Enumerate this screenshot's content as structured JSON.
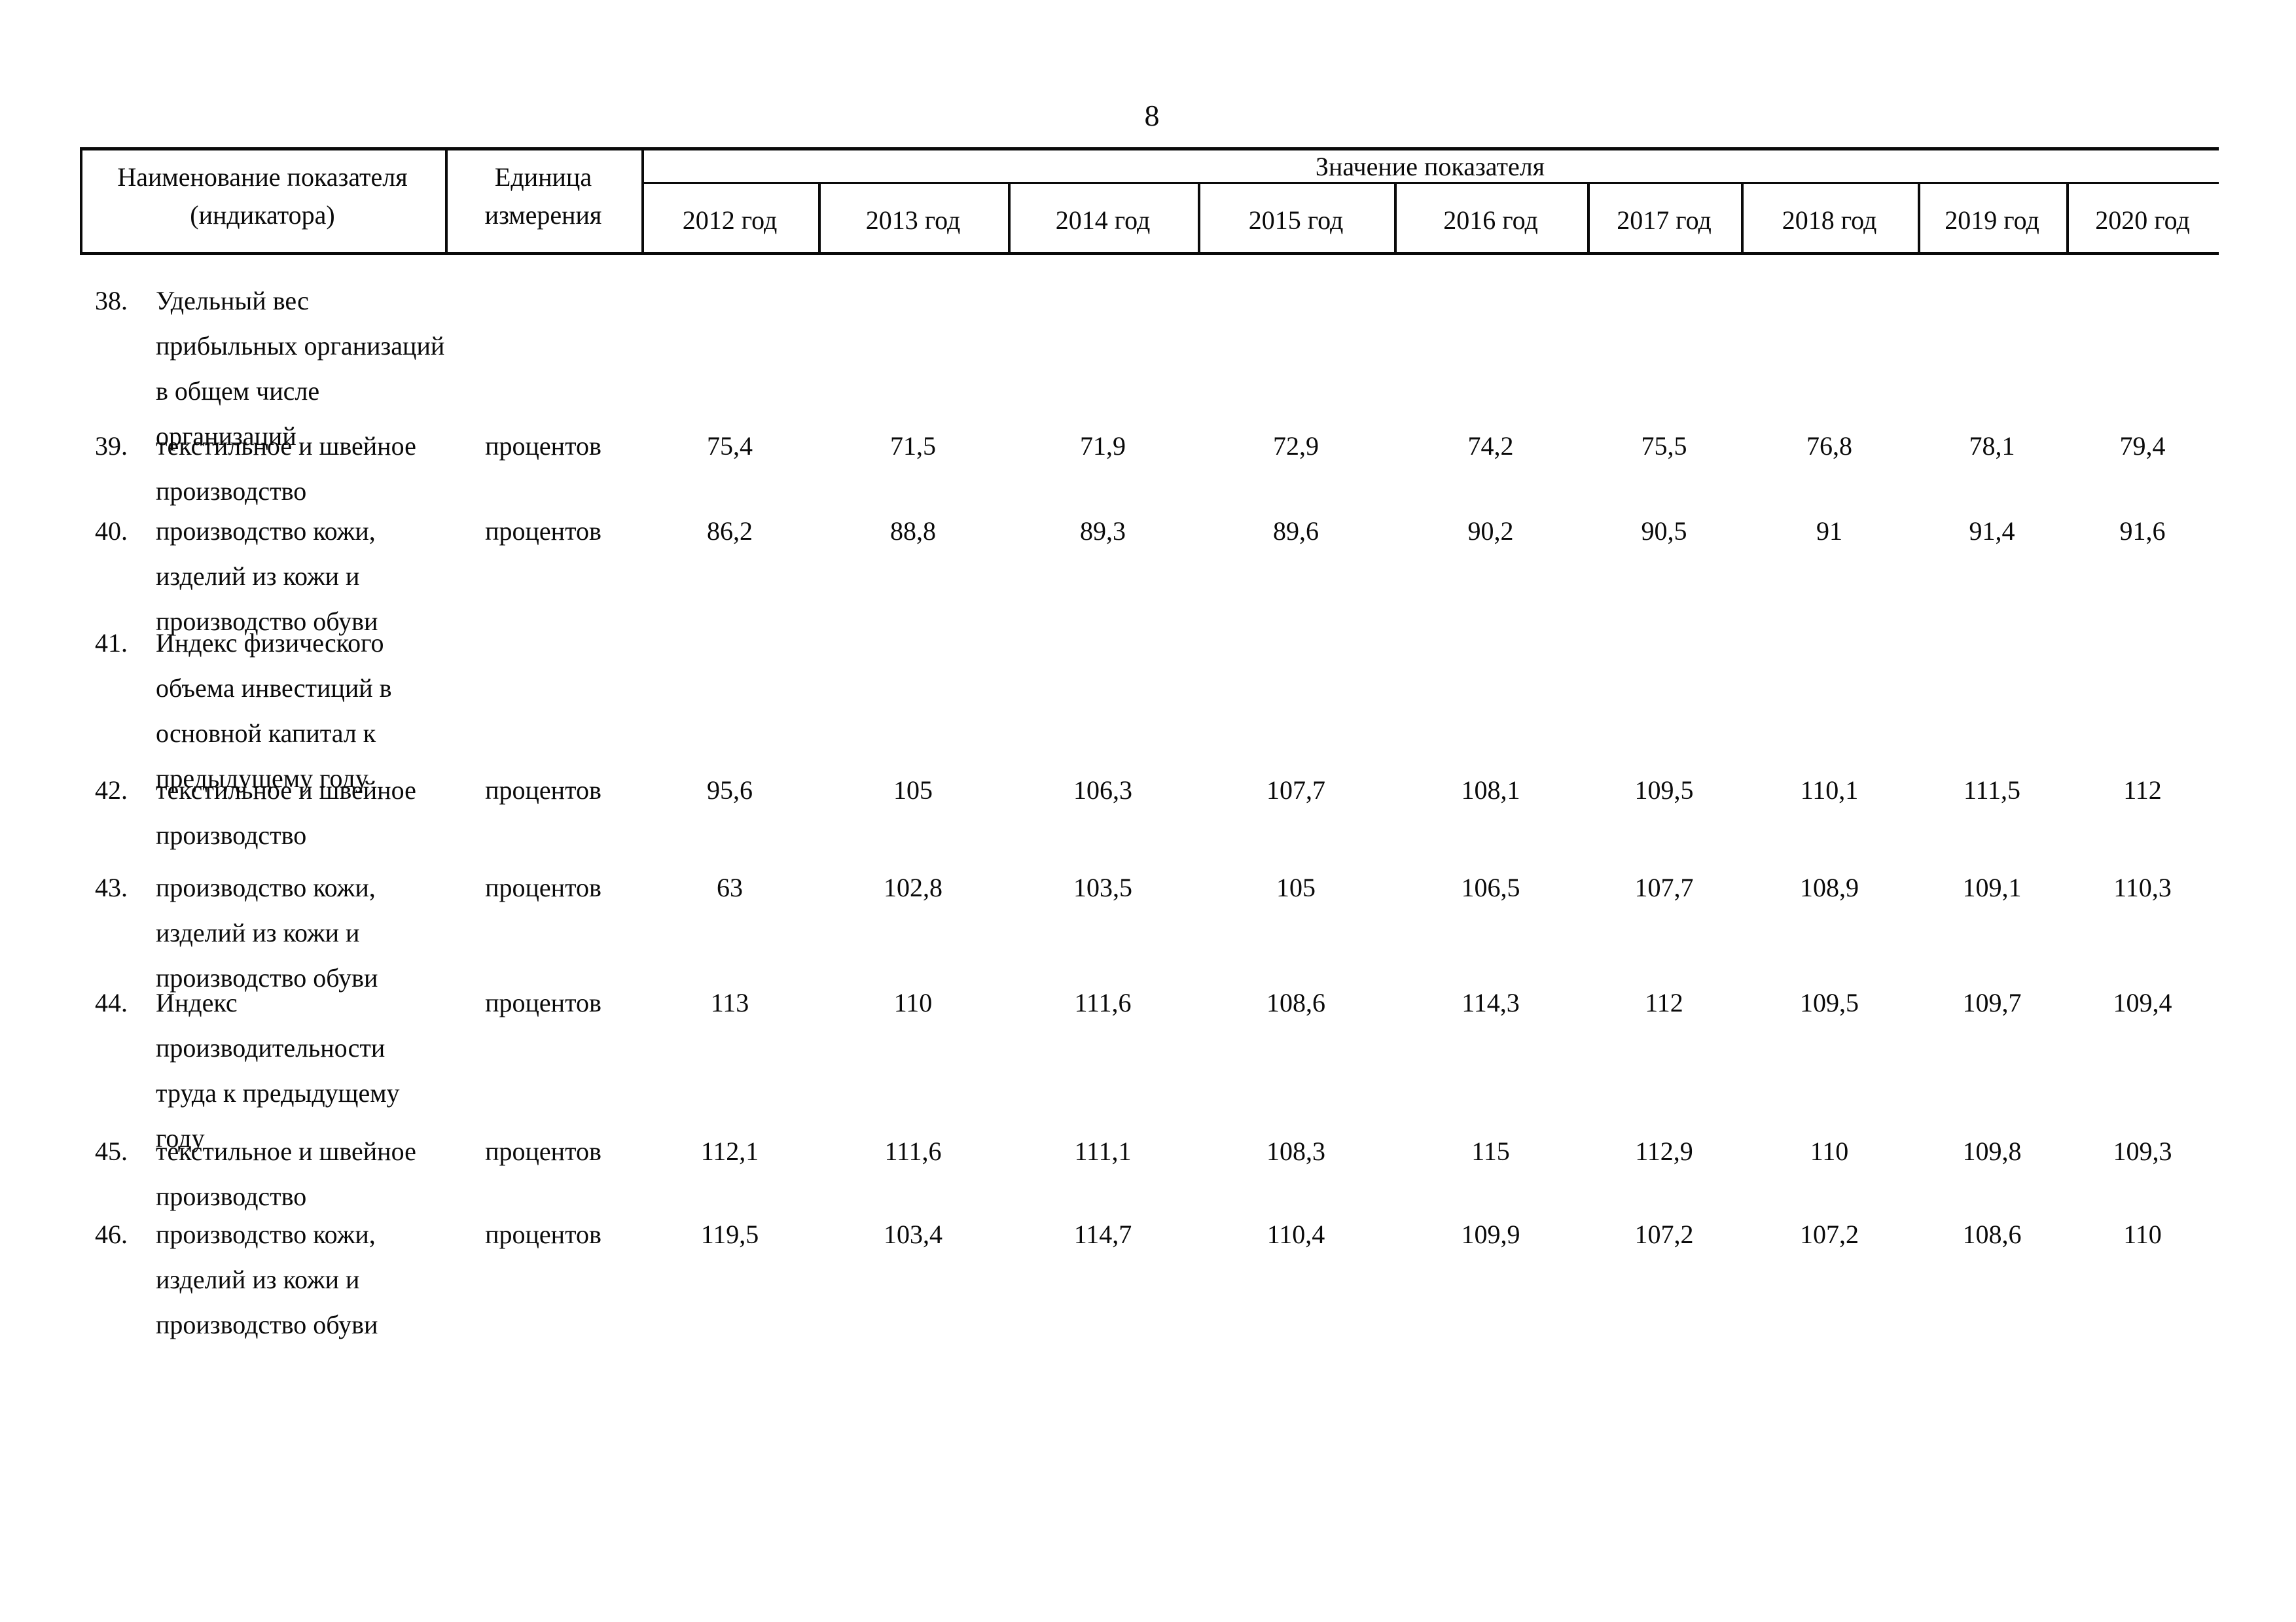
{
  "page": {
    "number": "8"
  },
  "table": {
    "header": {
      "indicator_col_lines": [
        "Наименование показателя",
        "(индикатора)"
      ],
      "unit_col_lines": [
        "Единица",
        "измерения"
      ],
      "value_group_label": "Значение показателя",
      "years": [
        "2012 год",
        "2013 год",
        "2014 год",
        "2015 год",
        "2016 год",
        "2017 год",
        "2018 год",
        "2019 год",
        "2020 год"
      ]
    },
    "rows": [
      {
        "num": "38.",
        "name_lines": [
          "Удельный вес",
          "прибыльных организаций",
          "в общем числе",
          "организаций"
        ],
        "unit": "",
        "values": []
      },
      {
        "num": "39.",
        "name_lines": [
          "текстильное и швейное",
          "производство"
        ],
        "unit": "процентов",
        "values": [
          "75,4",
          "71,5",
          "71,9",
          "72,9",
          "74,2",
          "75,5",
          "76,8",
          "78,1",
          "79,4"
        ]
      },
      {
        "num": "40.",
        "name_lines": [
          "производство кожи,",
          "изделий из кожи и",
          "производство обуви"
        ],
        "unit": "процентов",
        "values": [
          "86,2",
          "88,8",
          "89,3",
          "89,6",
          "90,2",
          "90,5",
          "91",
          "91,4",
          "91,6"
        ]
      },
      {
        "num": "41.",
        "name_lines": [
          "Индекс физического",
          "объема инвестиций в",
          "основной капитал к",
          "предыдущему году"
        ],
        "unit": "",
        "values": []
      },
      {
        "num": "42.",
        "name_lines": [
          "текстильное и швейное",
          "производство"
        ],
        "unit": "процентов",
        "values": [
          "95,6",
          "105",
          "106,3",
          "107,7",
          "108,1",
          "109,5",
          "110,1",
          "111,5",
          "112"
        ]
      },
      {
        "num": "43.",
        "name_lines": [
          "производство кожи,",
          "изделий из кожи и",
          "производство обуви"
        ],
        "unit": "процентов",
        "values": [
          "63",
          "102,8",
          "103,5",
          "105",
          "106,5",
          "107,7",
          "108,9",
          "109,1",
          "110,3"
        ]
      },
      {
        "num": "44.",
        "name_lines": [
          "Индекс",
          "производительности",
          "труда к предыдущему",
          "году"
        ],
        "unit": "процентов",
        "values": [
          "113",
          "110",
          "111,6",
          "108,6",
          "114,3",
          "112",
          "109,5",
          "109,7",
          "109,4"
        ]
      },
      {
        "num": "45.",
        "name_lines": [
          "текстильное и швейное",
          "производство"
        ],
        "unit": "процентов",
        "values": [
          "112,1",
          "111,6",
          "111,1",
          "108,3",
          "115",
          "112,9",
          "110",
          "109,8",
          "109,3"
        ]
      },
      {
        "num": "46.",
        "name_lines": [
          "производство кожи,",
          "изделий из кожи и",
          "производство обуви"
        ],
        "unit": "процентов",
        "values": [
          "119,5",
          "103,4",
          "114,7",
          "110,4",
          "109,9",
          "107,2",
          "107,2",
          "108,6",
          "110"
        ]
      }
    ]
  }
}
